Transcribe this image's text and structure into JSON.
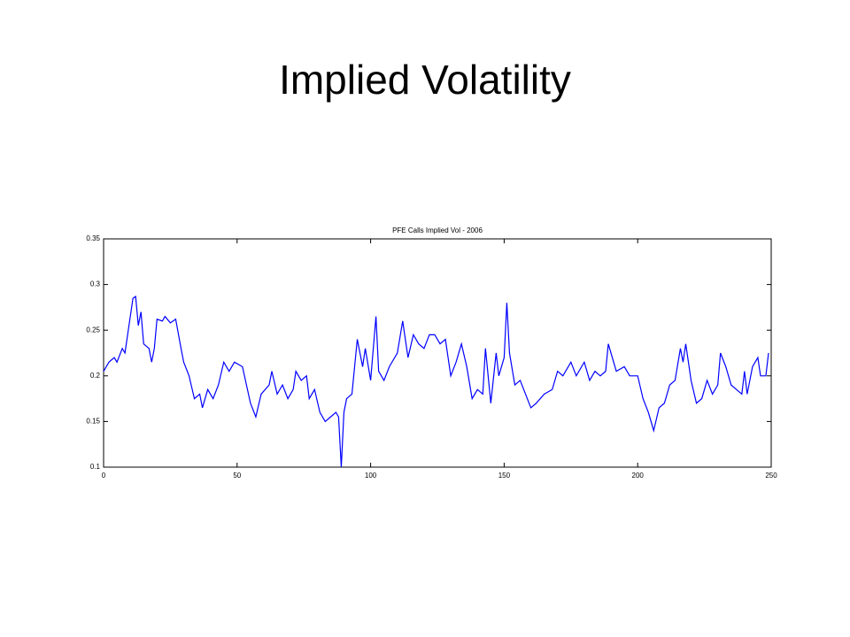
{
  "title": "Implied Volatility",
  "chart_data": {
    "type": "line",
    "title": "PFE Calls Implied Vol - 2006",
    "x": [
      0,
      2,
      4,
      5,
      7,
      8,
      10,
      11,
      12,
      13,
      14,
      15,
      17,
      18,
      19,
      20,
      22,
      23,
      25,
      27,
      29,
      30,
      32,
      34,
      36,
      37,
      39,
      41,
      43,
      45,
      47,
      49,
      52,
      55,
      57,
      59,
      62,
      63,
      65,
      67,
      69,
      71,
      72,
      74,
      76,
      77,
      79,
      81,
      83,
      85,
      87,
      88,
      89,
      90,
      91,
      93,
      95,
      97,
      98,
      100,
      102,
      103,
      105,
      107,
      110,
      112,
      114,
      116,
      118,
      120,
      122,
      124,
      126,
      128,
      130,
      132,
      134,
      136,
      138,
      140,
      142,
      143,
      145,
      147,
      148,
      150,
      151,
      152,
      154,
      156,
      158,
      160,
      162,
      165,
      168,
      170,
      172,
      175,
      177,
      180,
      182,
      184,
      186,
      188,
      189,
      191,
      192,
      195,
      197,
      200,
      202,
      204,
      206,
      208,
      210,
      212,
      214,
      216,
      217,
      218,
      220,
      222,
      224,
      226,
      228,
      230,
      231,
      233,
      235,
      237,
      239,
      240,
      241,
      243,
      245,
      246,
      248,
      249
    ],
    "series": [
      {
        "name": "PFE Calls Implied Vol",
        "color": "#0000ff",
        "values": [
          0.205,
          0.215,
          0.22,
          0.215,
          0.23,
          0.225,
          0.265,
          0.285,
          0.287,
          0.255,
          0.27,
          0.235,
          0.23,
          0.215,
          0.23,
          0.262,
          0.26,
          0.265,
          0.258,
          0.262,
          0.23,
          0.215,
          0.2,
          0.175,
          0.18,
          0.165,
          0.185,
          0.175,
          0.19,
          0.215,
          0.205,
          0.215,
          0.21,
          0.17,
          0.155,
          0.18,
          0.19,
          0.205,
          0.18,
          0.19,
          0.175,
          0.185,
          0.205,
          0.195,
          0.2,
          0.175,
          0.185,
          0.16,
          0.15,
          0.155,
          0.16,
          0.155,
          0.1,
          0.16,
          0.175,
          0.18,
          0.24,
          0.21,
          0.23,
          0.195,
          0.265,
          0.205,
          0.195,
          0.21,
          0.225,
          0.26,
          0.22,
          0.245,
          0.235,
          0.23,
          0.245,
          0.245,
          0.235,
          0.24,
          0.2,
          0.215,
          0.235,
          0.21,
          0.175,
          0.185,
          0.18,
          0.23,
          0.17,
          0.225,
          0.2,
          0.22,
          0.28,
          0.225,
          0.19,
          0.195,
          0.18,
          0.165,
          0.17,
          0.18,
          0.185,
          0.205,
          0.2,
          0.215,
          0.2,
          0.215,
          0.195,
          0.205,
          0.2,
          0.205,
          0.235,
          0.215,
          0.205,
          0.21,
          0.2,
          0.2,
          0.175,
          0.16,
          0.14,
          0.165,
          0.17,
          0.19,
          0.195,
          0.23,
          0.215,
          0.235,
          0.195,
          0.17,
          0.175,
          0.195,
          0.18,
          0.19,
          0.225,
          0.21,
          0.19,
          0.185,
          0.18,
          0.205,
          0.18,
          0.21,
          0.22,
          0.2,
          0.2,
          0.225
        ]
      }
    ],
    "xlim": [
      0,
      250
    ],
    "xticks": [
      0,
      50,
      100,
      150,
      200,
      250
    ],
    "ylim": [
      0.1,
      0.35
    ],
    "yticks": [
      0.1,
      0.15,
      0.2,
      0.25,
      0.3,
      0.35
    ]
  }
}
